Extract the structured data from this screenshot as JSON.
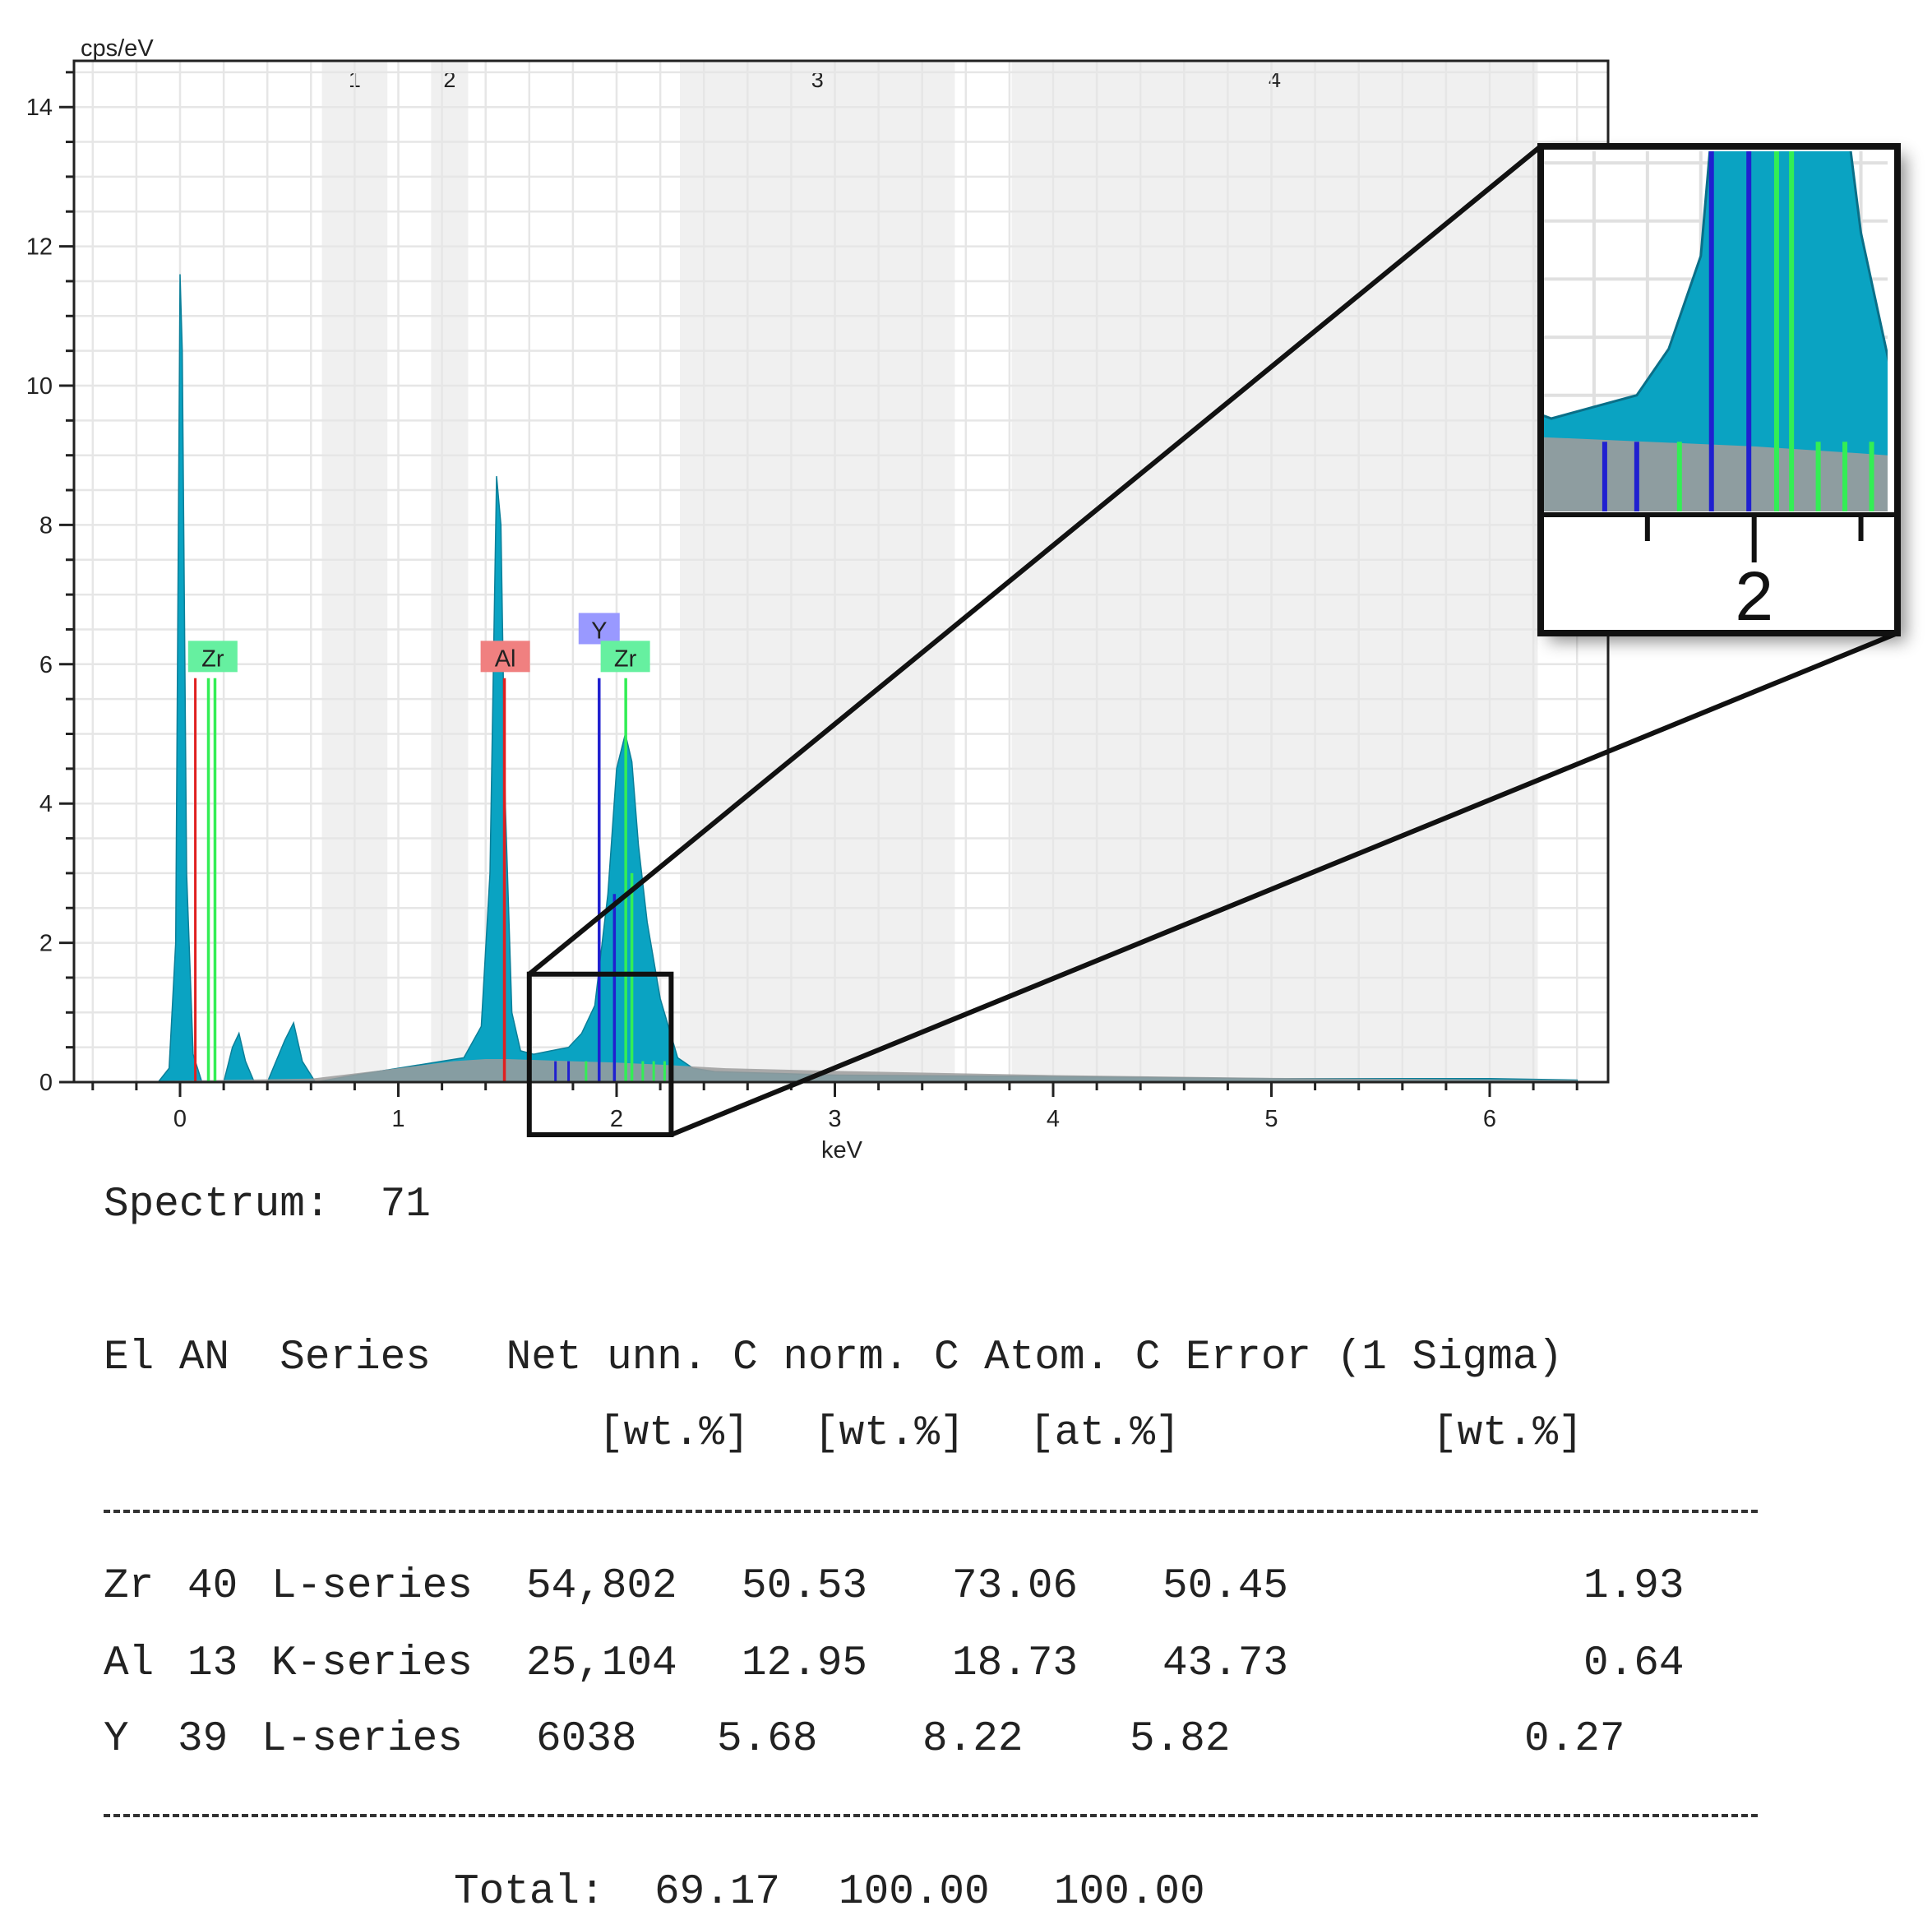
{
  "chart_data": {
    "type": "area",
    "ylabel": "cps/eV",
    "xlabel": "keV",
    "xlim": [
      -0.5,
      6.5
    ],
    "ylim": [
      0,
      14.5
    ],
    "x_ticks": [
      "0",
      "1",
      "2",
      "3",
      "4",
      "5",
      "6"
    ],
    "y_ticks": [
      "0",
      "2",
      "4",
      "6",
      "8",
      "10",
      "12",
      "14"
    ],
    "grid": true,
    "regions": [
      {
        "label": "1",
        "from": 0.65,
        "to": 0.95
      },
      {
        "label": "2",
        "from": 1.15,
        "to": 1.32
      },
      {
        "label": "3",
        "from": 2.29,
        "to": 3.55
      },
      {
        "label": "4",
        "from": 3.81,
        "to": 6.22
      }
    ],
    "series": [
      {
        "color": "#0aa3c2",
        "x": [
          -0.1,
          -0.05,
          -0.02,
          0.0,
          0.01,
          0.03,
          0.06,
          0.1,
          0.2,
          0.24,
          0.27,
          0.3,
          0.34,
          0.4,
          0.48,
          0.52,
          0.56,
          0.62,
          0.8,
          1.0,
          1.2,
          1.3,
          1.38,
          1.42,
          1.45,
          1.47,
          1.49,
          1.52,
          1.56,
          1.62,
          1.7,
          1.78,
          1.84,
          1.9,
          1.96,
          2.0,
          2.04,
          2.07,
          2.1,
          2.14,
          2.2,
          2.28,
          2.35,
          2.45,
          3.0,
          4.0,
          5.0,
          6.0,
          6.4
        ],
        "y": [
          0.0,
          0.2,
          2.0,
          11.6,
          10.5,
          3.0,
          0.4,
          0.0,
          0.0,
          0.5,
          0.7,
          0.3,
          0.0,
          0.0,
          0.6,
          0.85,
          0.3,
          0.0,
          0.1,
          0.2,
          0.3,
          0.35,
          0.8,
          3.0,
          8.7,
          8.0,
          4.0,
          1.0,
          0.45,
          0.4,
          0.45,
          0.5,
          0.7,
          1.1,
          2.7,
          4.5,
          5.0,
          4.6,
          3.4,
          2.3,
          1.2,
          0.35,
          0.2,
          0.15,
          0.1,
          0.08,
          0.05,
          0.05,
          0.03
        ]
      },
      {
        "color": "#9c9c9c",
        "x": [
          -0.5,
          0.6,
          1.0,
          1.25,
          1.4,
          1.5,
          1.6,
          1.8,
          2.0,
          2.2,
          2.5,
          3.0,
          4.0,
          5.0,
          6.4
        ],
        "y": [
          0.0,
          0.05,
          0.2,
          0.3,
          0.33,
          0.33,
          0.32,
          0.3,
          0.28,
          0.25,
          0.2,
          0.16,
          0.1,
          0.06,
          0.03
        ]
      }
    ],
    "element_lines": [
      {
        "element": "Zr",
        "color": "#33ee55",
        "label_color": "#66f0a0",
        "label_x": 0.15,
        "label_y": 6.1,
        "lines": [
          {
            "x": 0.13,
            "y": 5.8
          },
          {
            "x": 0.16,
            "y": 5.8
          }
        ]
      },
      {
        "element": "Al",
        "color": "#e02020",
        "label_color": "#f08080",
        "label_x": 1.49,
        "label_y": 6.1,
        "lines": [
          {
            "x": 1.486,
            "y": 5.8
          }
        ]
      },
      {
        "element": "Y",
        "color": "#2020d0",
        "label_color": "#9999ff",
        "label_x": 1.92,
        "label_y": 6.5,
        "lines": [
          {
            "x": 1.92,
            "y": 5.8
          },
          {
            "x": 1.99,
            "y": 2.7
          }
        ]
      },
      {
        "element": "Zr",
        "color": "#33ee55",
        "label_color": "#66f0a0",
        "label_x": 2.04,
        "label_y": 6.1,
        "lines": [
          {
            "x": 2.042,
            "y": 5.8
          },
          {
            "x": 2.07,
            "y": 3.0
          }
        ]
      }
    ],
    "minor_lines": [
      {
        "x": 0.07,
        "y": 5.8,
        "color": "#e02020"
      },
      {
        "x": 1.72,
        "y": 0.3,
        "color": "#2020d0"
      },
      {
        "x": 1.78,
        "y": 0.3,
        "color": "#2020d0"
      },
      {
        "x": 1.86,
        "y": 0.3,
        "color": "#33ee55"
      },
      {
        "x": 2.12,
        "y": 0.3,
        "color": "#33ee55"
      },
      {
        "x": 2.17,
        "y": 0.3,
        "color": "#33ee55"
      },
      {
        "x": 2.22,
        "y": 0.3,
        "color": "#33ee55"
      }
    ],
    "zoom_inset": {
      "x_range": [
        1.6,
        2.25
      ],
      "y_range": [
        0,
        1.55
      ],
      "tick_label": "2"
    }
  },
  "report": {
    "spectrum_line": "Spectrum:  71",
    "header1": "El AN  Series   Net unn. C norm. C Atom. C Error (1 Sigma)",
    "units": {
      "net": "[wt.%]",
      "norm": "[wt.%]",
      "atom": "[at.%]",
      "error": "[wt.%]"
    },
    "rows": [
      {
        "el": "Zr",
        "an": "40",
        "series": "L-series",
        "net": "54,802",
        "unn": "50.53",
        "norm": "73.06",
        "atom": "50.45",
        "error": "1.93"
      },
      {
        "el": "Al",
        "an": "13",
        "series": "K-series",
        "net": "25,104",
        "unn": "12.95",
        "norm": "18.73",
        "atom": "43.73",
        "error": "0.64"
      },
      {
        "el": "Y",
        "an": "39",
        "series": "L-series",
        "net": "6038",
        "unn": "5.68",
        "norm": "8.22",
        "atom": "5.82",
        "error": "0.27"
      }
    ],
    "total_label": "Total:",
    "total_unn": "69.17",
    "total_norm": "100.00",
    "total_atom": "100.00"
  }
}
